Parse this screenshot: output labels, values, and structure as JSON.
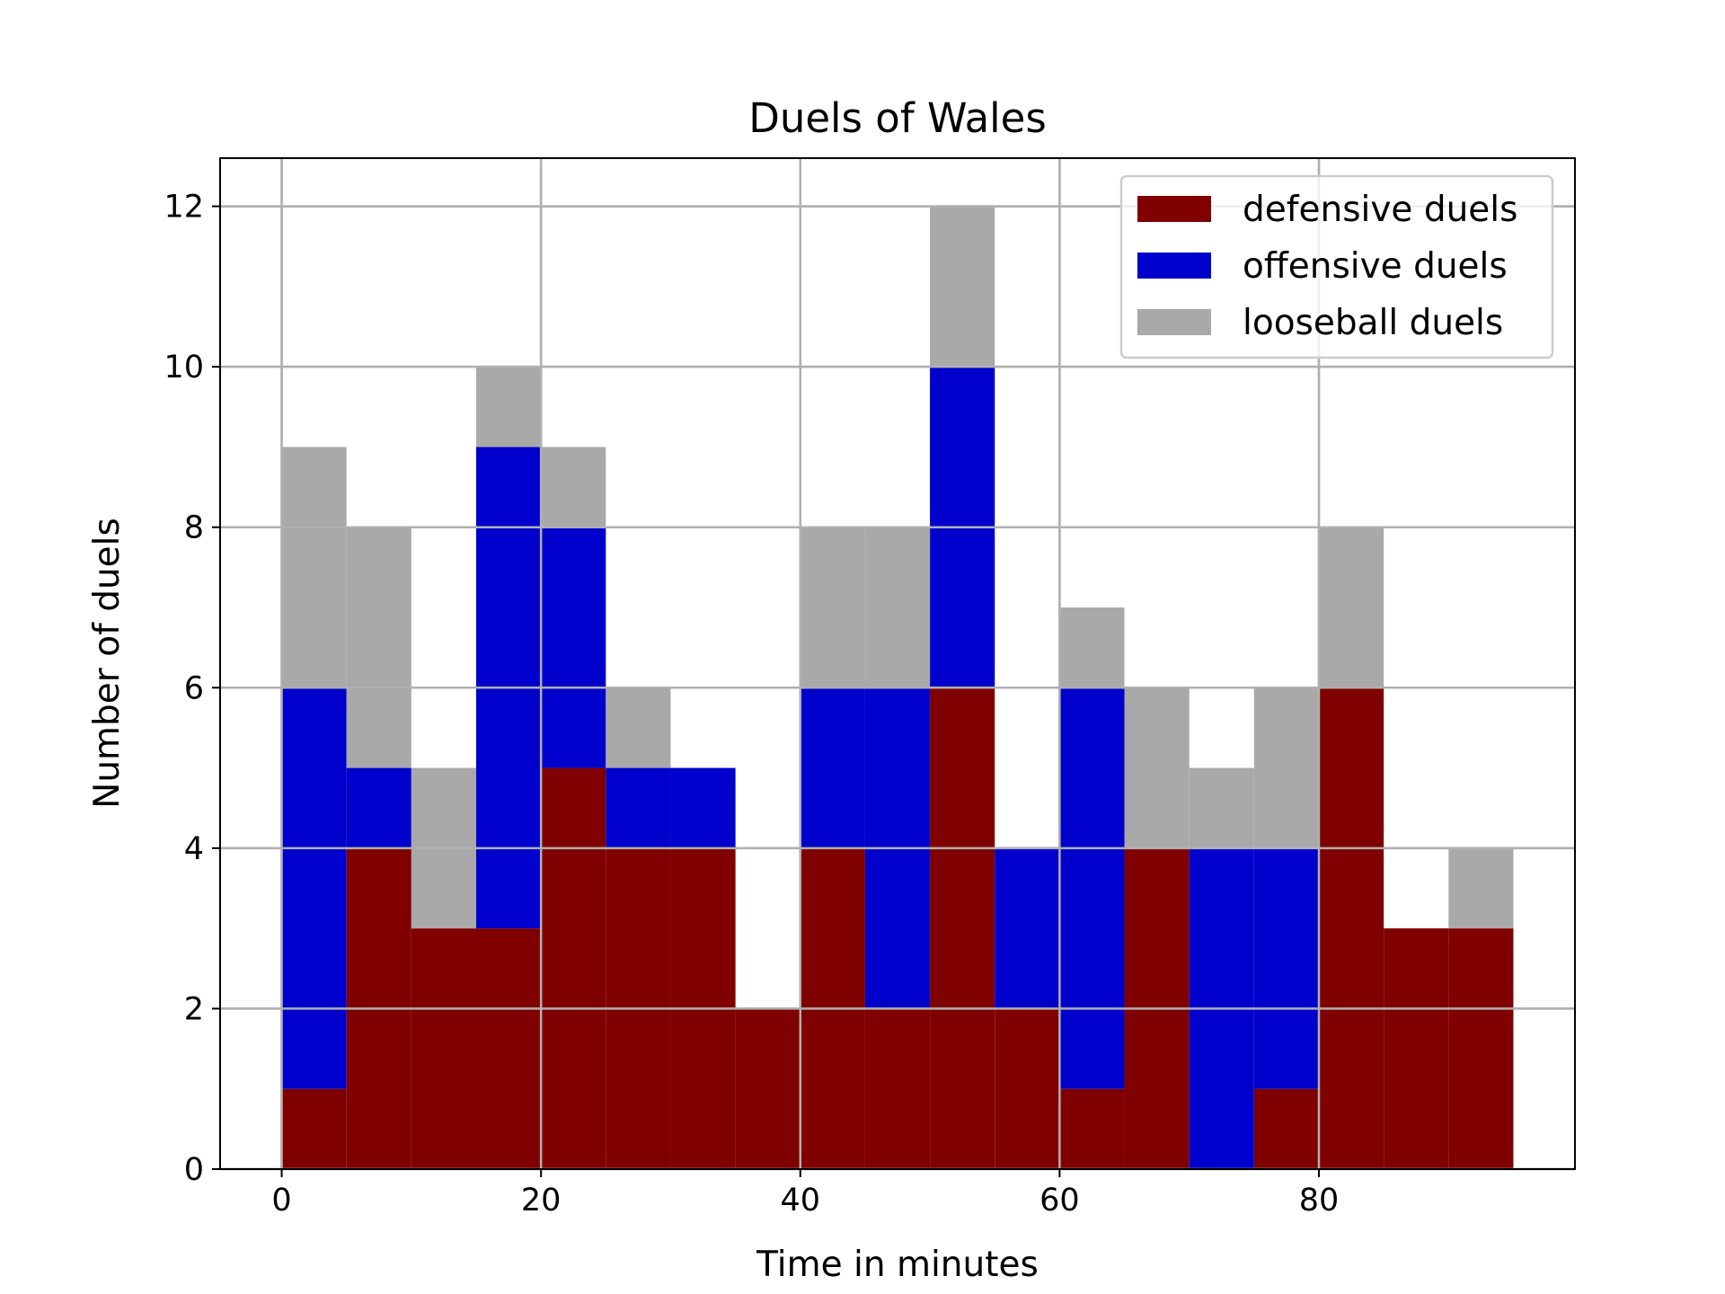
{
  "chart_data": {
    "type": "bar",
    "stacked": true,
    "title": "Duels of Wales",
    "xlabel": "Time in minutes",
    "ylabel": "Number of duels",
    "xlim": [
      -4.75,
      99.75
    ],
    "ylim": [
      0,
      12.6
    ],
    "xticks": [
      0,
      20,
      40,
      60,
      80
    ],
    "yticks": [
      0,
      2,
      4,
      6,
      8,
      10,
      12
    ],
    "grid": true,
    "legend_position": "top-right",
    "bin_width": 5,
    "bin_starts": [
      0,
      5,
      10,
      15,
      20,
      25,
      30,
      35,
      40,
      45,
      50,
      55,
      60,
      65,
      70,
      75,
      80,
      85,
      90
    ],
    "series": [
      {
        "name": "defensive duels",
        "color": "#800000",
        "values": [
          1,
          4,
          3,
          3,
          5,
          4,
          4,
          2,
          4,
          2,
          6,
          2,
          1,
          4,
          0,
          1,
          6,
          3,
          3
        ]
      },
      {
        "name": "offensive duels",
        "color": "#0000cd",
        "values": [
          5,
          1,
          0,
          6,
          3,
          1,
          1,
          0,
          2,
          4,
          4,
          2,
          5,
          0,
          4,
          3,
          0,
          0,
          0
        ]
      },
      {
        "name": "looseball duels",
        "color": "#a9a9a9",
        "values": [
          3,
          3,
          2,
          1,
          1,
          1,
          0,
          0,
          2,
          2,
          2,
          0,
          1,
          2,
          1,
          2,
          2,
          0,
          1
        ]
      }
    ]
  }
}
